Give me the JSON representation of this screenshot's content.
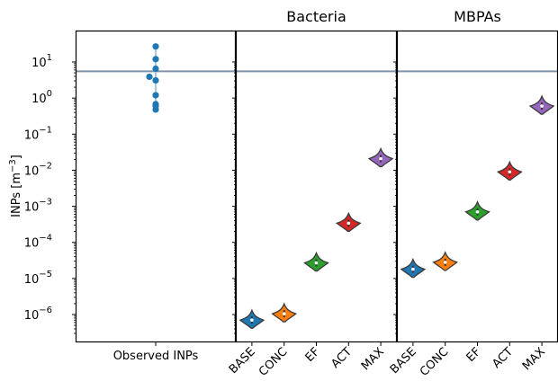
{
  "chart_data": {
    "type": "scatter",
    "ylabel_text": "INPs [m",
    "ylabel_sup": "−3",
    "ylabel_close": "]",
    "yscale": "log",
    "ylim": [
      3e-07,
      100
    ],
    "yticks": [
      {
        "value": 1e-06,
        "mant": "10",
        "exp": "−6"
      },
      {
        "value": 1e-05,
        "mant": "10",
        "exp": "−5"
      },
      {
        "value": 0.0001,
        "mant": "10",
        "exp": "−4"
      },
      {
        "value": 0.001,
        "mant": "10",
        "exp": "−3"
      },
      {
        "value": 0.01,
        "mant": "10",
        "exp": "−2"
      },
      {
        "value": 0.1,
        "mant": "10",
        "exp": "−1"
      },
      {
        "value": 1,
        "mant": "10",
        "exp": "0"
      },
      {
        "value": 10,
        "mant": "10",
        "exp": "1"
      }
    ],
    "reference_line": {
      "value": 5.5,
      "color": "#7f93a8"
    },
    "panels": [
      {
        "title": "",
        "kind": "strip",
        "categories": [
          "Observed INPs"
        ],
        "color": "#1f77b4",
        "points": [
          {
            "value": 27,
            "offset": 0
          },
          {
            "value": 12,
            "offset": 0
          },
          {
            "value": 6.5,
            "offset": 0
          },
          {
            "value": 3.9,
            "offset": -1
          },
          {
            "value": 3.1,
            "offset": 0
          },
          {
            "value": 1.2,
            "offset": 0
          },
          {
            "value": 0.68,
            "offset": 0
          },
          {
            "value": 0.6,
            "offset": 0
          },
          {
            "value": 0.48,
            "offset": 0
          }
        ]
      },
      {
        "title": "Bacteria",
        "kind": "violin",
        "categories": [
          "BASE",
          "CONC",
          "EF",
          "ACT",
          "MAX"
        ],
        "values": [
          7e-07,
          1.05e-06,
          2.7e-05,
          0.00034,
          0.021
        ],
        "colors": [
          "#1f77b4",
          "#ff7f0e",
          "#2ca02c",
          "#d62728",
          "#9467bd"
        ]
      },
      {
        "title": "MBPAs",
        "kind": "violin",
        "categories": [
          "BASE",
          "CONC",
          "EF",
          "ACT",
          "MAX"
        ],
        "values": [
          1.8e-05,
          2.8e-05,
          0.0007,
          0.009,
          0.6
        ],
        "colors": [
          "#1f77b4",
          "#ff7f0e",
          "#2ca02c",
          "#d62728",
          "#9467bd"
        ]
      }
    ]
  }
}
